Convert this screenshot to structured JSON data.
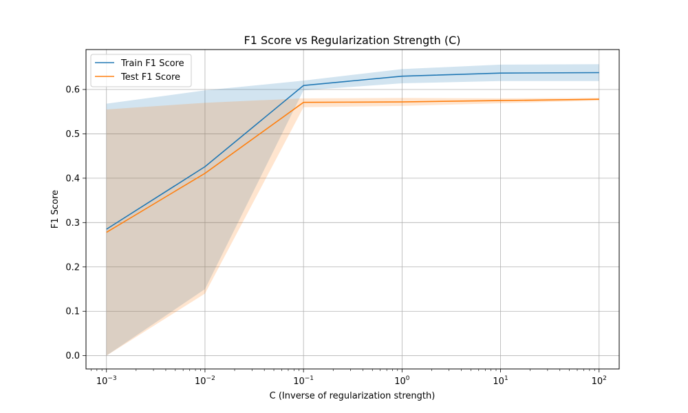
{
  "chart_data": {
    "type": "line",
    "title": "F1 Score vs Regularization Strength (C)",
    "xlabel": "C (Inverse of regularization strength)",
    "ylabel": "F1 Score",
    "x_scale": "log",
    "x": [
      0.001,
      0.01,
      0.1,
      1,
      10,
      100
    ],
    "xlim": [
      0.00062,
      160
    ],
    "ylim": [
      -0.03,
      0.69
    ],
    "x_ticks": [
      {
        "value": 0.001,
        "base": "10",
        "exp": "−3"
      },
      {
        "value": 0.01,
        "base": "10",
        "exp": "−2"
      },
      {
        "value": 0.1,
        "base": "10",
        "exp": "−1"
      },
      {
        "value": 1,
        "base": "10",
        "exp": "0"
      },
      {
        "value": 10,
        "base": "10",
        "exp": "1"
      },
      {
        "value": 100,
        "base": "10",
        "exp": "2"
      }
    ],
    "y_ticks": [
      {
        "value": 0.0,
        "label": "0.0"
      },
      {
        "value": 0.1,
        "label": "0.1"
      },
      {
        "value": 0.2,
        "label": "0.2"
      },
      {
        "value": 0.3,
        "label": "0.3"
      },
      {
        "value": 0.4,
        "label": "0.4"
      },
      {
        "value": 0.5,
        "label": "0.5"
      },
      {
        "value": 0.6,
        "label": "0.6"
      }
    ],
    "grid": true,
    "legend_position": "top-left",
    "series": [
      {
        "name": "Train F1 Score",
        "color": "#1f77b4",
        "values": [
          0.285,
          0.426,
          0.609,
          0.63,
          0.637,
          0.638
        ],
        "band_upper": [
          0.568,
          0.598,
          0.62,
          0.646,
          0.656,
          0.657
        ],
        "band_lower": [
          0.0,
          0.15,
          0.598,
          0.614,
          0.619,
          0.619
        ]
      },
      {
        "name": "Test F1 Score",
        "color": "#ff7f0e",
        "values": [
          0.278,
          0.411,
          0.571,
          0.572,
          0.575,
          0.578
        ],
        "band_upper": [
          0.555,
          0.57,
          0.58,
          0.581,
          0.58,
          0.581
        ],
        "band_lower": [
          0.0,
          0.14,
          0.56,
          0.563,
          0.569,
          0.575
        ]
      }
    ]
  }
}
